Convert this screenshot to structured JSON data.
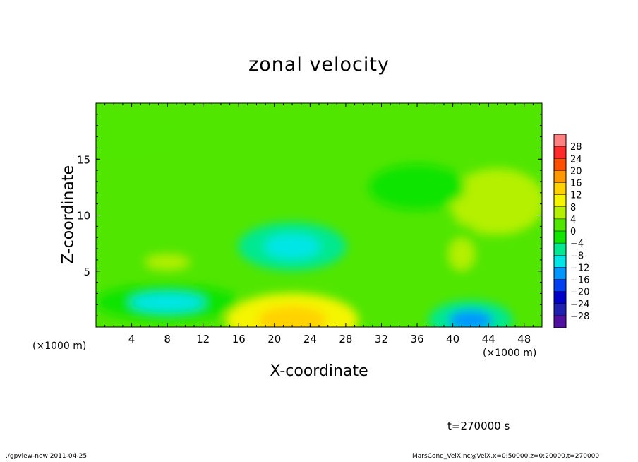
{
  "chart_data": {
    "type": "heatmap",
    "title": "zonal velocity",
    "xlabel": "X-coordinate",
    "ylabel": "Z-coordinate",
    "x_unit_label": "(×1000 m)",
    "xlim": [
      0,
      50
    ],
    "ylim": [
      0,
      20
    ],
    "x_ticks": [
      4,
      8,
      12,
      16,
      20,
      24,
      28,
      32,
      36,
      40,
      44,
      48
    ],
    "y_ticks": [
      5,
      10,
      15
    ],
    "colorbar": {
      "levels": [
        28,
        24,
        20,
        16,
        12,
        8,
        4,
        0,
        -4,
        -8,
        -12,
        -16,
        -20,
        -24,
        -28
      ],
      "colors": [
        "#ff8080",
        "#ff2a2a",
        "#ff5000",
        "#ff9800",
        "#ffd200",
        "#f5f500",
        "#b4f000",
        "#50e600",
        "#10e400",
        "#00e890",
        "#00e6e6",
        "#0096ff",
        "#0040f0",
        "#0000c8",
        "#2020b0",
        "#5010a0"
      ],
      "range": [
        -32,
        32
      ]
    },
    "features": [
      {
        "x": 22,
        "z": 0.6,
        "value": 16
      },
      {
        "x": 42,
        "z": 0.6,
        "value": -14
      },
      {
        "x": 22,
        "z": 7.2,
        "value": -11
      },
      {
        "x": 45,
        "z": 11.2,
        "value": 8
      },
      {
        "x": 8,
        "z": 2.2,
        "value": -8
      },
      {
        "x": 8,
        "z": 5.8,
        "value": 6
      },
      {
        "x": 41,
        "z": 6.5,
        "value": 6
      },
      {
        "x": 36,
        "z": 12.5,
        "value": -3
      },
      {
        "x": 3,
        "z": 17,
        "value": 3
      }
    ],
    "background_value": 1
  },
  "annotations": {
    "time": "t=270000 s",
    "footer_left": "./gpview-new  2011-04-25",
    "footer_right": "MarsCond_VelX.nc@VelX,x=0:50000,z=0:20000,t=270000"
  }
}
